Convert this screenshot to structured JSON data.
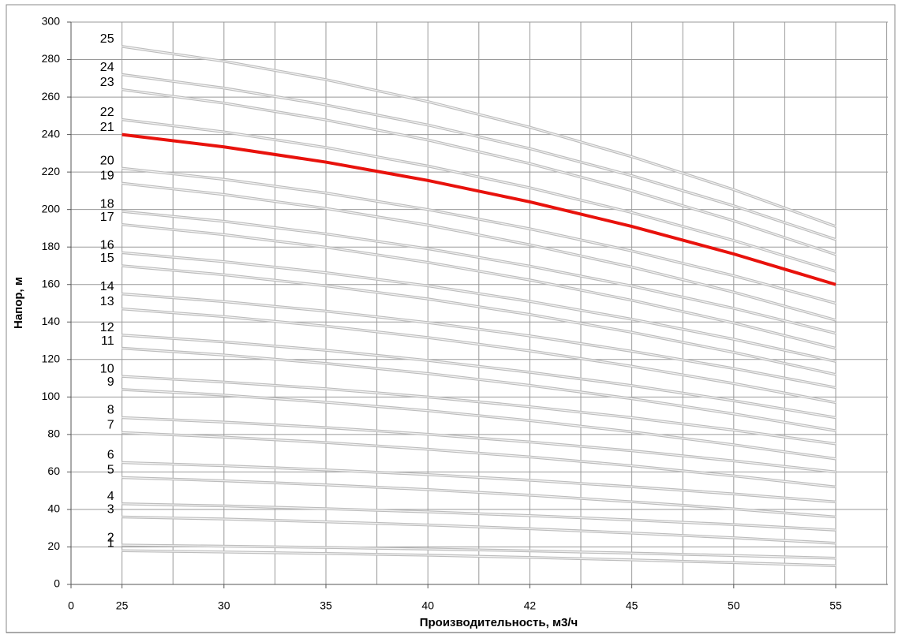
{
  "chart_data": {
    "type": "line",
    "ylabel": "Напор, м",
    "xlabel": "Производительность, м3/ч",
    "categories": [
      "0",
      "25",
      "30",
      "35",
      "40",
      "42",
      "45",
      "50",
      "55"
    ],
    "ylim": [
      0,
      300
    ],
    "yticks": [
      0,
      20,
      40,
      60,
      80,
      100,
      120,
      140,
      160,
      180,
      200,
      220,
      240,
      260,
      280,
      300
    ],
    "grid": true,
    "series": [
      {
        "name": "1",
        "color": "#bdbdbd",
        "values": [
          null,
          18,
          17.3,
          16.5,
          15.6,
          14.4,
          13.1,
          11.6,
          10
        ]
      },
      {
        "name": "2",
        "color": "#bdbdbd",
        "values": [
          null,
          21,
          20.4,
          19.7,
          18.9,
          17.9,
          16.7,
          15.4,
          14
        ]
      },
      {
        "name": "3",
        "color": "#bdbdbd",
        "values": [
          null,
          36,
          34.9,
          33.4,
          31.7,
          29.7,
          27.4,
          24.9,
          22
        ]
      },
      {
        "name": "4",
        "color": "#bdbdbd",
        "values": [
          null,
          43,
          41.9,
          40.4,
          38.7,
          36.7,
          34.4,
          31.9,
          29
        ]
      },
      {
        "name": "5",
        "color": "#bdbdbd",
        "values": [
          null,
          57,
          55.3,
          53.1,
          50.6,
          47.6,
          44.1,
          40.3,
          36
        ]
      },
      {
        "name": "6",
        "color": "#bdbdbd",
        "values": [
          null,
          65,
          63.3,
          61.1,
          58.6,
          55.6,
          52.1,
          48.3,
          44
        ]
      },
      {
        "name": "7",
        "color": "#bdbdbd",
        "values": [
          null,
          81,
          78.6,
          75.7,
          72.1,
          68,
          63.3,
          57.9,
          52
        ]
      },
      {
        "name": "8",
        "color": "#bdbdbd",
        "values": [
          null,
          89,
          86.6,
          83.7,
          80.1,
          76,
          71.3,
          65.9,
          60
        ]
      },
      {
        "name": "9",
        "color": "#bdbdbd",
        "values": [
          null,
          104,
          101,
          97.2,
          92.7,
          87.4,
          81.4,
          74.5,
          67
        ]
      },
      {
        "name": "10",
        "color": "#bdbdbd",
        "values": [
          null,
          111,
          108,
          104.4,
          100,
          94.8,
          89,
          82.3,
          75
        ]
      },
      {
        "name": "11",
        "color": "#bdbdbd",
        "values": [
          null,
          126,
          122.4,
          117.9,
          112.5,
          106.2,
          99.1,
          91,
          82
        ]
      },
      {
        "name": "12",
        "color": "#bdbdbd",
        "values": [
          null,
          133,
          129.4,
          124.9,
          119.5,
          113.2,
          106.1,
          98,
          89
        ]
      },
      {
        "name": "13",
        "color": "#bdbdbd",
        "values": [
          null,
          147,
          142.9,
          137.8,
          131.7,
          124.6,
          116.4,
          107.2,
          97
        ]
      },
      {
        "name": "14",
        "color": "#bdbdbd",
        "values": [
          null,
          155,
          150.9,
          145.8,
          139.7,
          132.6,
          124.4,
          115.2,
          105
        ]
      },
      {
        "name": "15",
        "color": "#bdbdbd",
        "values": [
          null,
          170,
          165.2,
          159.3,
          152.3,
          144,
          134.5,
          123.8,
          112
        ]
      },
      {
        "name": "16",
        "color": "#bdbdbd",
        "values": [
          null,
          177,
          172.2,
          166.3,
          159.3,
          151,
          141.5,
          130.8,
          119
        ]
      },
      {
        "name": "17",
        "color": "#bdbdbd",
        "values": [
          null,
          192,
          186.6,
          179.9,
          171.8,
          162.4,
          151.6,
          139.5,
          126
        ]
      },
      {
        "name": "18",
        "color": "#bdbdbd",
        "values": [
          null,
          199,
          193.7,
          187,
          179.1,
          169.8,
          159.2,
          147.3,
          134
        ]
      },
      {
        "name": "19",
        "color": "#bdbdbd",
        "values": [
          null,
          214,
          208,
          200.6,
          191.7,
          181.2,
          169.3,
          155.9,
          141
        ]
      },
      {
        "name": "20",
        "color": "#bdbdbd",
        "values": [
          null,
          222,
          216.1,
          208.8,
          200,
          189.7,
          177.9,
          164.7,
          150
        ]
      },
      {
        "name": "21",
        "color": "#e8120c",
        "values": [
          null,
          240,
          233.4,
          225.3,
          215.5,
          204.1,
          191,
          176.3,
          160
        ]
      },
      {
        "name": "22",
        "color": "#bdbdbd",
        "values": [
          null,
          248,
          241.4,
          233.1,
          223.2,
          211.6,
          198.4,
          183.5,
          167
        ]
      },
      {
        "name": "23",
        "color": "#bdbdbd",
        "values": [
          null,
          264,
          256.8,
          247.8,
          237.1,
          224.5,
          210.1,
          194,
          176
        ]
      },
      {
        "name": "24",
        "color": "#bdbdbd",
        "values": [
          null,
          272,
          264.8,
          255.8,
          245.1,
          232.5,
          218.1,
          202,
          184
        ]
      },
      {
        "name": "25",
        "color": "#bdbdbd",
        "values": [
          null,
          287,
          279.1,
          269.3,
          257.6,
          243.9,
          228.2,
          210.6,
          191
        ]
      }
    ]
  }
}
